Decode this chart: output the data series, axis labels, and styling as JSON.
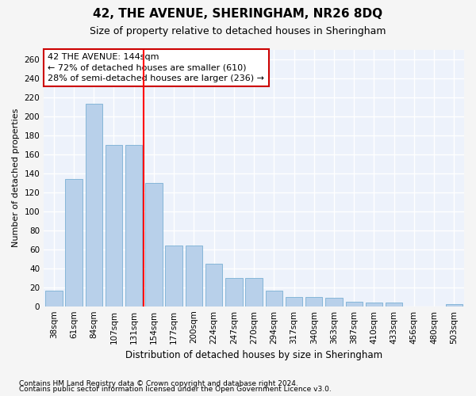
{
  "title": "42, THE AVENUE, SHERINGHAM, NR26 8DQ",
  "subtitle": "Size of property relative to detached houses in Sheringham",
  "xlabel": "Distribution of detached houses by size in Sheringham",
  "ylabel": "Number of detached properties",
  "categories": [
    "38sqm",
    "61sqm",
    "84sqm",
    "107sqm",
    "131sqm",
    "154sqm",
    "177sqm",
    "200sqm",
    "224sqm",
    "247sqm",
    "270sqm",
    "294sqm",
    "317sqm",
    "340sqm",
    "363sqm",
    "387sqm",
    "410sqm",
    "433sqm",
    "456sqm",
    "480sqm",
    "503sqm"
  ],
  "values": [
    16,
    134,
    213,
    170,
    170,
    130,
    64,
    64,
    45,
    30,
    30,
    16,
    10,
    10,
    9,
    5,
    4,
    4,
    0,
    0,
    2
  ],
  "bar_color": "#b8d0ea",
  "bar_edge_color": "#7aafd4",
  "background_color": "#edf2fb",
  "grid_color": "#ffffff",
  "red_line_x": 4.5,
  "annotation_text": "42 THE AVENUE: 144sqm\n← 72% of detached houses are smaller (610)\n28% of semi-detached houses are larger (236) →",
  "annotation_box_facecolor": "#ffffff",
  "annotation_box_edgecolor": "#cc0000",
  "ylim": [
    0,
    270
  ],
  "yticks": [
    0,
    20,
    40,
    60,
    80,
    100,
    120,
    140,
    160,
    180,
    200,
    220,
    240,
    260
  ],
  "footnote1": "Contains HM Land Registry data © Crown copyright and database right 2024.",
  "footnote2": "Contains public sector information licensed under the Open Government Licence v3.0.",
  "title_fontsize": 11,
  "subtitle_fontsize": 9,
  "ylabel_fontsize": 8,
  "xlabel_fontsize": 8.5,
  "tick_fontsize": 7.5,
  "annotation_fontsize": 8,
  "footnote_fontsize": 6.5,
  "fig_facecolor": "#f5f5f5"
}
